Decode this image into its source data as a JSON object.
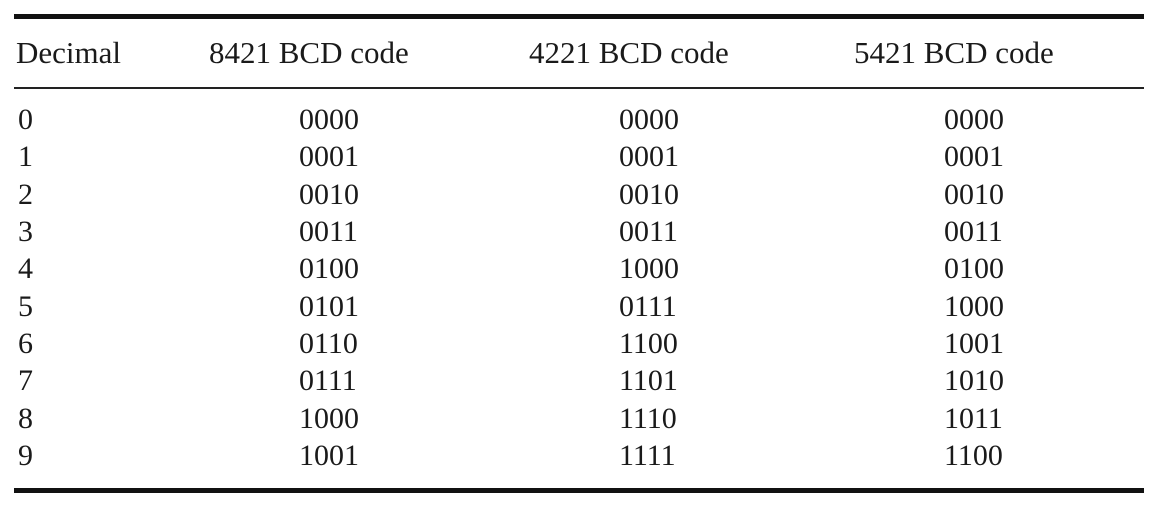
{
  "table": {
    "headers": [
      "Decimal",
      "8421 BCD code",
      "4221 BCD code",
      "5421 BCD code"
    ],
    "rows": [
      [
        "0",
        "0000",
        "0000",
        "0000"
      ],
      [
        "1",
        "0001",
        "0001",
        "0001"
      ],
      [
        "2",
        "0010",
        "0010",
        "0010"
      ],
      [
        "3",
        "0011",
        "0011",
        "0011"
      ],
      [
        "4",
        "0100",
        "1000",
        "0100"
      ],
      [
        "5",
        "0101",
        "0111",
        "1000"
      ],
      [
        "6",
        "0110",
        "1100",
        "1001"
      ],
      [
        "7",
        "0111",
        "1101",
        "1010"
      ],
      [
        "8",
        "1000",
        "1110",
        "1011"
      ],
      [
        "9",
        "1001",
        "1111",
        "1100"
      ]
    ]
  }
}
